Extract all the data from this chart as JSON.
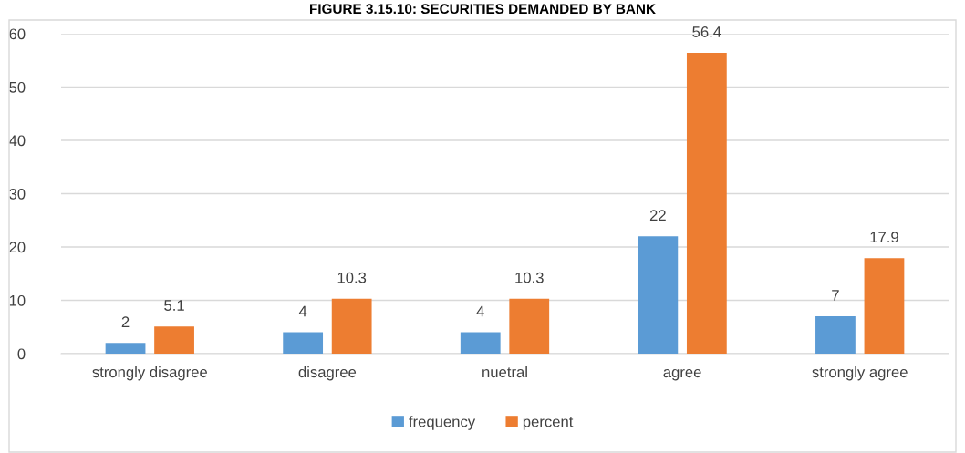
{
  "chart_data": {
    "type": "bar",
    "title": "FIGURE 3.15.10: SECURITIES DEMANDED BY BANK",
    "categories": [
      "strongly disagree",
      "disagree",
      "nuetral",
      "agree",
      "strongly agree"
    ],
    "series": [
      {
        "name": "frequency",
        "color": "#5b9bd5",
        "values": [
          2,
          4,
          4,
          22,
          7
        ]
      },
      {
        "name": "percent",
        "color": "#ed7d31",
        "values": [
          5.1,
          10.3,
          10.3,
          56.4,
          17.9
        ]
      }
    ],
    "ylim": [
      0,
      60
    ],
    "yticks": [
      0,
      10,
      20,
      30,
      40,
      50,
      60
    ],
    "grid": "y",
    "legend": "bottom",
    "data_labels": true
  }
}
